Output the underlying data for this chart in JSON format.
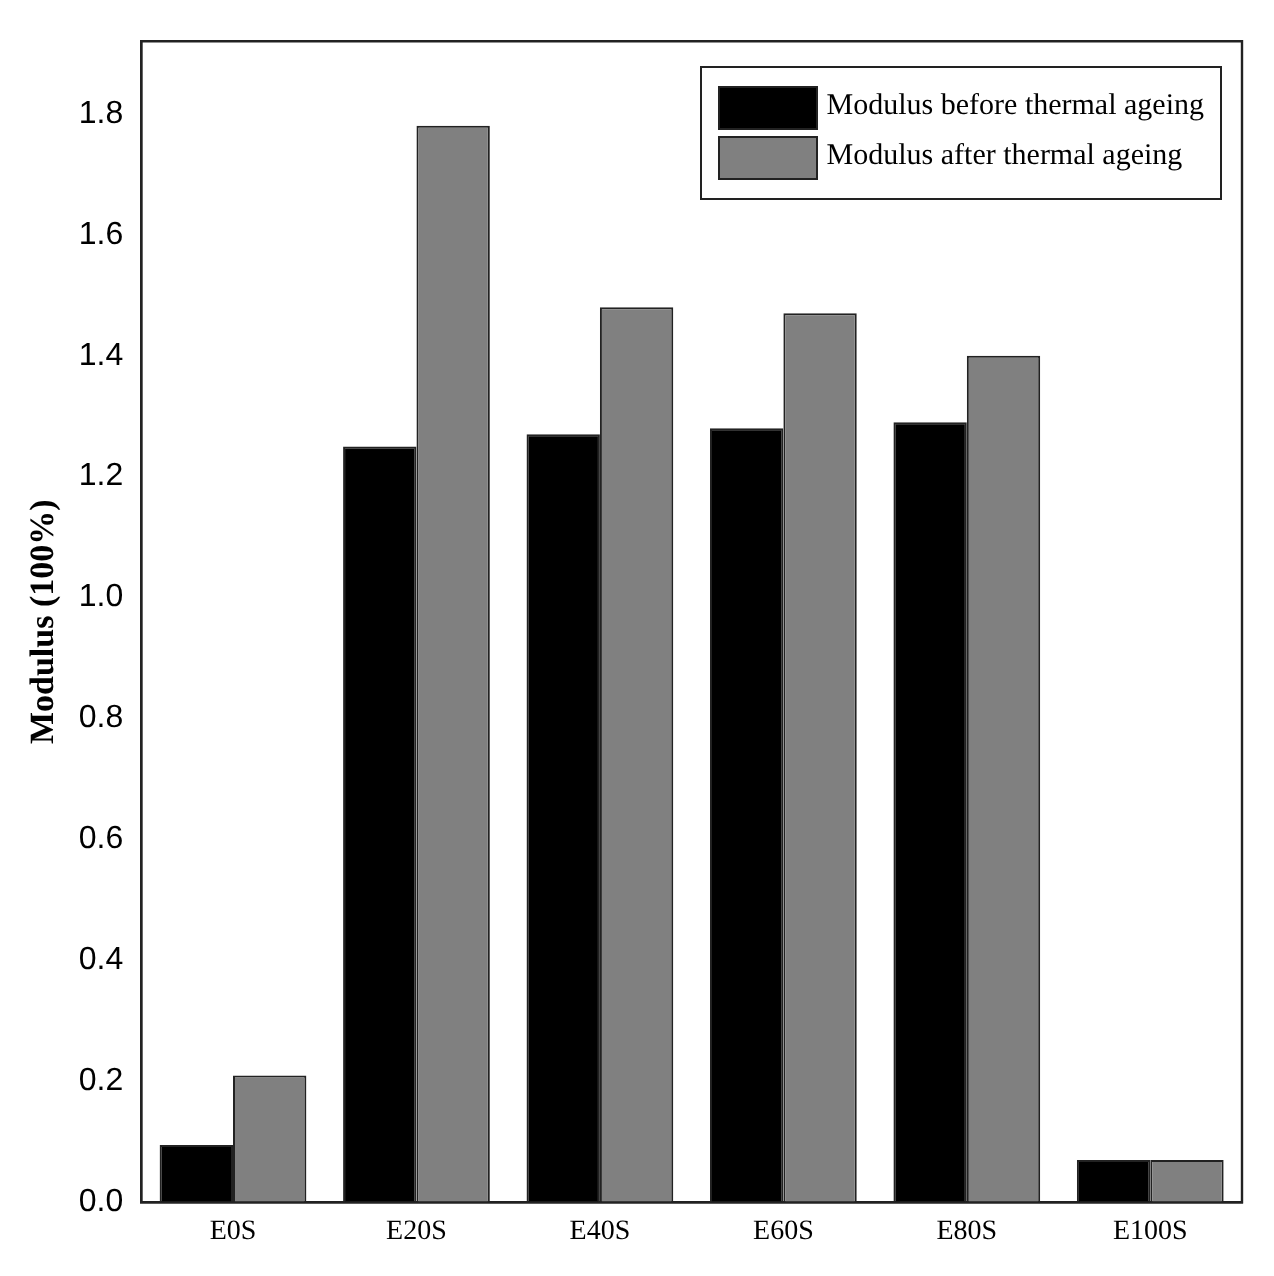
{
  "chart_data": {
    "type": "bar",
    "ylabel": "Modulus (100%)",
    "categories": [
      "E0S",
      "E20S",
      "E40S",
      "E60S",
      "E80S",
      "E100S"
    ],
    "series": [
      {
        "name": "Modulus before thermal ageing",
        "color": "#000000",
        "values": [
          0.095,
          1.25,
          1.27,
          1.28,
          1.29,
          0.07
        ]
      },
      {
        "name": "Modulus after thermal ageing",
        "color": "#808080",
        "values": [
          0.21,
          1.78,
          1.48,
          1.47,
          1.4,
          0.07
        ]
      }
    ],
    "ylim": [
      0,
      1.92
    ],
    "yticks": [
      {
        "value": 0,
        "label": "0.0"
      },
      {
        "value": 0.2,
        "label": "0.2"
      },
      {
        "value": 0.4,
        "label": "0.4"
      },
      {
        "value": 0.6,
        "label": "0.6"
      },
      {
        "value": 0.8,
        "label": "0.8"
      },
      {
        "value": 1,
        "label": "1.0"
      },
      {
        "value": 1.2,
        "label": "1.2"
      },
      {
        "value": 1.4,
        "label": "1.4"
      },
      {
        "value": 1.6,
        "label": "1.6"
      },
      {
        "value": 1.8,
        "label": "1.8"
      }
    ],
    "grid": false,
    "legend": "top right"
  }
}
